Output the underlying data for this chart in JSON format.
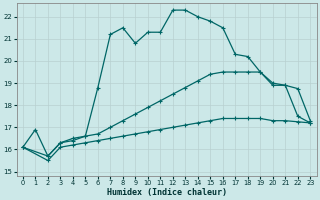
{
  "xlabel": "Humidex (Indice chaleur)",
  "bg_color": "#cce8e8",
  "grid_color": "#b0c8c8",
  "line_color": "#006666",
  "xlim": [
    -0.5,
    23.5
  ],
  "ylim": [
    14.8,
    22.6
  ],
  "xticks": [
    0,
    1,
    2,
    3,
    4,
    5,
    6,
    7,
    8,
    9,
    10,
    11,
    12,
    13,
    14,
    15,
    16,
    17,
    18,
    19,
    20,
    21,
    22,
    23
  ],
  "yticks": [
    15,
    16,
    17,
    18,
    19,
    20,
    21,
    22
  ],
  "line_top_x": [
    0,
    1,
    2,
    3,
    4,
    5,
    6,
    7,
    8,
    9,
    10,
    11,
    12,
    13,
    14,
    15,
    16,
    17,
    18,
    19,
    20,
    21,
    22,
    23
  ],
  "line_top_y": [
    16.1,
    16.9,
    15.7,
    16.3,
    16.5,
    16.6,
    18.8,
    21.2,
    21.5,
    20.8,
    21.3,
    21.3,
    22.3,
    22.3,
    22.0,
    21.8,
    21.5,
    20.3,
    20.2,
    19.5,
    19.0,
    18.9,
    17.5,
    17.2
  ],
  "line_mid_x": [
    0,
    2,
    3,
    4,
    5,
    6,
    7,
    8,
    9,
    10,
    11,
    12,
    13,
    14,
    15,
    16,
    17,
    18,
    19,
    20,
    21,
    22,
    23
  ],
  "line_mid_y": [
    16.1,
    15.7,
    16.3,
    16.4,
    16.6,
    16.7,
    17.0,
    17.3,
    17.6,
    17.9,
    18.2,
    18.5,
    18.8,
    19.1,
    19.4,
    19.5,
    19.5,
    19.5,
    19.5,
    18.9,
    18.9,
    18.75,
    17.3
  ],
  "line_bot_x": [
    0,
    2,
    3,
    4,
    5,
    6,
    7,
    8,
    9,
    10,
    11,
    12,
    13,
    14,
    15,
    16,
    17,
    18,
    19,
    20,
    21,
    22,
    23
  ],
  "line_bot_y": [
    16.1,
    15.5,
    16.1,
    16.2,
    16.3,
    16.4,
    16.5,
    16.6,
    16.7,
    16.8,
    16.9,
    17.0,
    17.1,
    17.2,
    17.3,
    17.4,
    17.4,
    17.4,
    17.4,
    17.3,
    17.3,
    17.25,
    17.2
  ]
}
